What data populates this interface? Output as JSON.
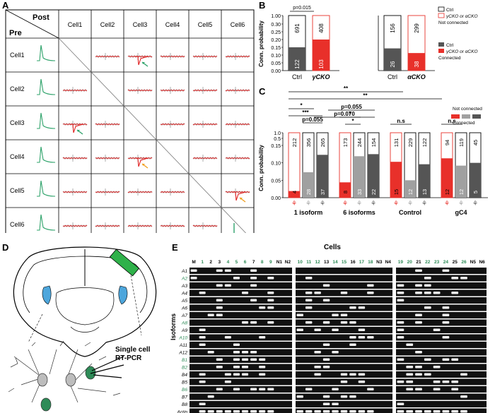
{
  "panelA": {
    "label": "A",
    "corner_post": "Post",
    "corner_pre": "Pre",
    "cells": [
      "Cell1",
      "Cell2",
      "Cell3",
      "Cell4",
      "Cell5",
      "Cell6"
    ]
  },
  "panelB": {
    "label": "B",
    "ylabel": "Conn. probability",
    "yticks": [
      "0.00",
      "0.05",
      "0.10",
      "0.15",
      "0.20",
      "0.25",
      "0.30",
      "1.00"
    ],
    "pvalue": "p=0.015",
    "left": {
      "categories": [
        "Ctrl",
        "γCKO"
      ],
      "not_connected": [
        691,
        408
      ],
      "connected": [
        122,
        103
      ],
      "fill": [
        0.15,
        0.2
      ]
    },
    "right": {
      "categories": [
        "Ctrl",
        "αCKO"
      ],
      "not_connected": [
        156,
        299
      ],
      "connected": [
        26,
        38
      ],
      "fill": [
        0.143,
        0.113
      ]
    },
    "legend_top": [
      "Ctrl",
      "γCKO or αCKO",
      "Not connected"
    ],
    "legend_bottom": [
      "Ctrl",
      "γCKO or αCKO",
      "Connected"
    ]
  },
  "panelC": {
    "label": "C",
    "ylabel": "Conn. probability",
    "yticks": [
      "0.00",
      "0.05",
      "0.10",
      "0.15",
      "0.5",
      "1.0"
    ],
    "groups": [
      "1 isoform",
      "6 isoforms",
      "Control",
      "gC4"
    ],
    "not_connected": [
      212,
      356,
      265,
      173,
      244,
      154,
      131,
      229,
      122,
      94,
      119,
      45
    ],
    "connected": [
      4,
      28,
      37,
      8,
      33,
      22,
      15,
      12,
      13,
      12,
      12,
      5
    ],
    "fill": [
      0.019,
      0.073,
      0.123,
      0.044,
      0.119,
      0.125,
      0.103,
      0.05,
      0.096,
      0.113,
      0.092,
      0.1
    ],
    "sig": [
      "**",
      "**",
      "*",
      "***",
      "p=0.055",
      "p=0.070",
      "p=0.055",
      "*",
      "*",
      "n.s",
      "n.s"
    ],
    "legend": [
      "Not connected",
      "Connected"
    ]
  },
  "panelD": {
    "label": "D",
    "caption_line1": "Single cell",
    "caption_line2": "RT-PCR"
  },
  "panelE": {
    "label": "E",
    "title": "Cells",
    "ylabel": "Isoforms",
    "lanes_1": [
      "M",
      "1",
      "2",
      "3",
      "4",
      "5",
      "6",
      "7",
      "8",
      "9",
      "N1",
      "N2"
    ],
    "lanes_2": [
      "10",
      "11",
      "12",
      "13",
      "14",
      "15",
      "16",
      "17",
      "18",
      "N3",
      "N4"
    ],
    "lanes_3": [
      "19",
      "20",
      "21",
      "22",
      "23",
      "24",
      "25",
      "26",
      "N5",
      "N6"
    ],
    "isoforms": [
      "A1",
      "A2",
      "A3",
      "A4",
      "A5",
      "A6",
      "A7",
      "A8",
      "A9",
      "A10",
      "A11",
      "A12",
      "B1",
      "B2",
      "B4",
      "B5",
      "B6",
      "B7",
      "B8",
      "Actin"
    ],
    "colors": {
      "red": "#e8302a",
      "grey": "#a0a0a0",
      "dark": "#555555",
      "green": "#2e8b57",
      "trace_red": "#e02020"
    }
  }
}
